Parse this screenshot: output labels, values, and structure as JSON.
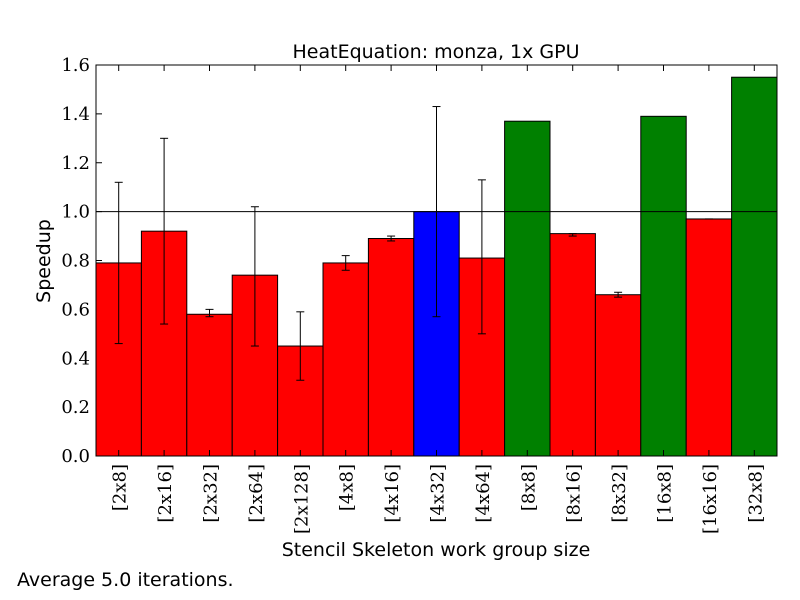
{
  "chart_data": {
    "type": "bar",
    "title": "HeatEquation: monza, 1x GPU",
    "xlabel": "Stencil Skeleton work group size",
    "ylabel": "Speedup",
    "ylim": [
      0.0,
      1.6
    ],
    "yticks": [
      "0.0",
      "0.2",
      "0.4",
      "0.6",
      "0.8",
      "1.0",
      "1.2",
      "1.4",
      "1.6"
    ],
    "reference_line": 1.0,
    "categories": [
      "[2x8]",
      "[2x16]",
      "[2x32]",
      "[2x64]",
      "[2x128]",
      "[4x8]",
      "[4x16]",
      "[4x32]",
      "[4x64]",
      "[8x8]",
      "[8x16]",
      "[8x32]",
      "[16x8]",
      "[16x16]",
      "[32x8]"
    ],
    "values": [
      0.79,
      0.92,
      0.58,
      0.74,
      0.45,
      0.79,
      0.89,
      1.0,
      0.81,
      1.37,
      0.91,
      0.66,
      1.39,
      0.97,
      1.55
    ],
    "error_low": [
      0.46,
      0.54,
      0.57,
      0.45,
      0.31,
      0.76,
      0.88,
      0.57,
      0.5,
      null,
      0.9,
      0.65,
      null,
      0.97,
      null
    ],
    "error_high": [
      1.12,
      1.3,
      0.6,
      1.02,
      0.59,
      0.82,
      0.9,
      1.43,
      1.13,
      null,
      0.91,
      0.67,
      null,
      0.97,
      null
    ],
    "bar_colors": [
      "#ff0000",
      "#ff0000",
      "#ff0000",
      "#ff0000",
      "#ff0000",
      "#ff0000",
      "#ff0000",
      "#0000ff",
      "#ff0000",
      "#008000",
      "#ff0000",
      "#ff0000",
      "#008000",
      "#ff0000",
      "#008000"
    ],
    "grid": false
  },
  "footnote": "Average 5.0 iterations."
}
